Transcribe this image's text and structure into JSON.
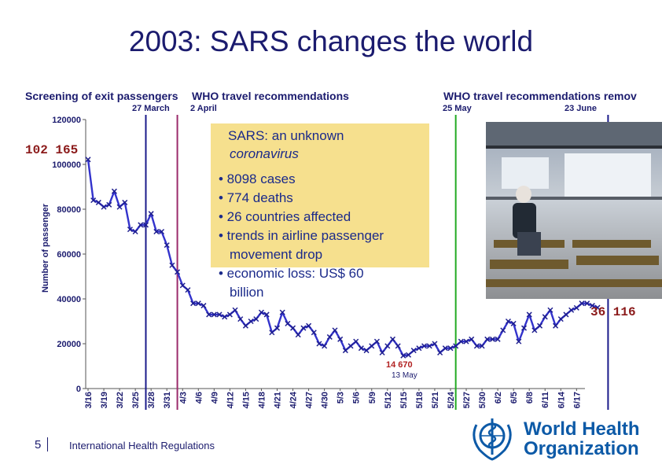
{
  "title": "2003: SARS changes the world",
  "annotations": {
    "screening": "Screening of exit passengers",
    "who_recs": "WHO travel recommendations",
    "who_removed": "WHO travel recommendations remov",
    "date_27_march": "27 March",
    "date_2_april": "2 April",
    "date_25_may": "25 May",
    "date_23_june": "23 June"
  },
  "callouts": {
    "start_value": "102 165",
    "end_value": "36 116",
    "min_value": "14 670",
    "min_date": "13 May"
  },
  "infobox": {
    "heading1": "SARS: an unknown",
    "heading2": "coronavirus",
    "b1": "• 8098 cases",
    "b2": "• 774 deaths",
    "b3": "• 26 countries affected",
    "b4a": "• trends in airline passenger",
    "b4b": "movement drop",
    "b5a": "• economic loss: US$ 60",
    "b5b": "billion"
  },
  "footer": {
    "page_number": "5",
    "caption": "International Health Regulations",
    "org_line1": "World Health",
    "org_line2": "Organization"
  },
  "colors": {
    "title": "#1b1b6e",
    "series": "#3333cc",
    "marker": "#1f1f8f",
    "callout": "#8b1a1a",
    "line_27_march": "#1b1b8a",
    "line_2_april": "#9b2b6b",
    "line_25_may": "#22aa22",
    "line_23_june": "#1b1b8a",
    "infobox_bg": "#f6e08e",
    "who_blue": "#0d5aa7"
  },
  "chart_data": {
    "type": "line",
    "title": "2003: SARS changes the world",
    "ylabel": "Number of passenger",
    "xlabel": "",
    "ylim": [
      0,
      120000
    ],
    "yticks": [
      0,
      20000,
      40000,
      60000,
      80000,
      100000,
      120000
    ],
    "x_tick_labels": [
      "3/16",
      "3/19",
      "3/22",
      "3/25",
      "3/28",
      "3/31",
      "4/3",
      "4/6",
      "4/9",
      "4/12",
      "4/15",
      "4/18",
      "4/21",
      "4/24",
      "4/27",
      "4/30",
      "5/3",
      "5/6",
      "5/9",
      "5/12",
      "5/15",
      "5/18",
      "5/21",
      "5/24",
      "5/27",
      "5/30",
      "6/2",
      "6/5",
      "6/8",
      "6/11",
      "6/14",
      "6/17"
    ],
    "x_day_range": [
      0,
      94
    ],
    "vertical_markers": [
      {
        "label": "27 March",
        "day": 11
      },
      {
        "label": "2 April",
        "day": 17
      },
      {
        "label": "25 May",
        "day": 70
      },
      {
        "label": "23 June",
        "day": 99
      }
    ],
    "series": [
      {
        "name": "Number of passenger",
        "values": [
          102165,
          84000,
          83000,
          81000,
          82000,
          88000,
          81000,
          83000,
          71000,
          70000,
          73000,
          73000,
          78000,
          70000,
          70000,
          64000,
          55000,
          52000,
          46000,
          44000,
          38000,
          38000,
          37000,
          33000,
          33000,
          33000,
          32000,
          33000,
          35000,
          31000,
          28000,
          30000,
          31000,
          34000,
          33000,
          25000,
          27000,
          34000,
          29000,
          27000,
          24000,
          27000,
          28000,
          25000,
          20000,
          19000,
          23000,
          26000,
          22000,
          17000,
          19000,
          21000,
          18000,
          17000,
          19000,
          21000,
          16000,
          19000,
          22000,
          19000,
          14670,
          15000,
          17000,
          18000,
          19000,
          19000,
          20000,
          16000,
          18000,
          18000,
          19000,
          21000,
          21000,
          22000,
          19000,
          19000,
          22000,
          22000,
          22000,
          26000,
          30000,
          29000,
          21000,
          27000,
          33000,
          26000,
          28000,
          32000,
          35000,
          28000,
          31000,
          33000,
          35000,
          36000,
          38000,
          38000,
          37000,
          36116
        ]
      }
    ]
  }
}
